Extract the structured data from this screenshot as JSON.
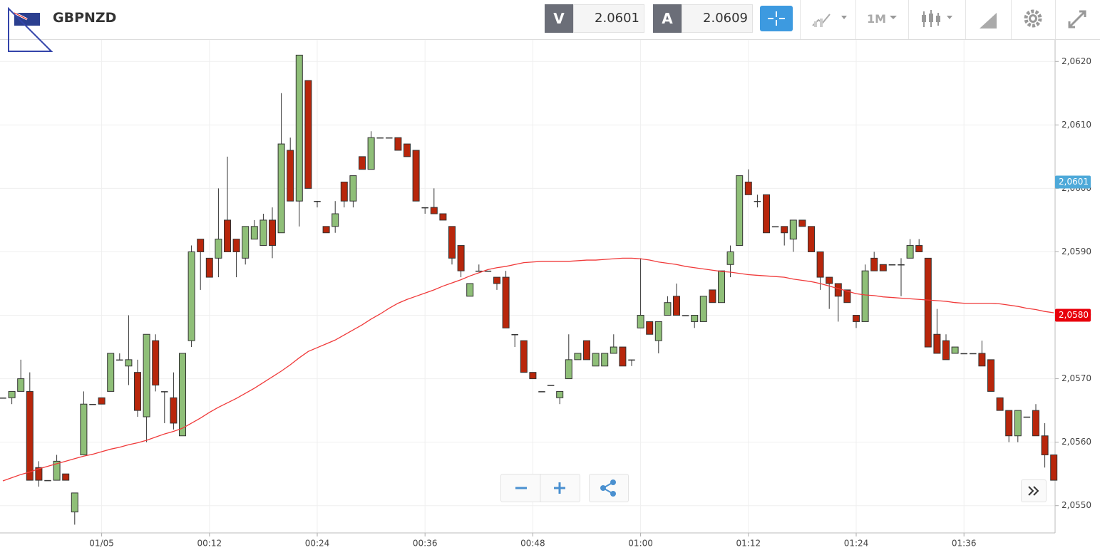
{
  "toolbar": {
    "symbol": "GBPNZD",
    "sell_label": "V",
    "sell_price": "2.0601",
    "buy_label": "A",
    "buy_price": "2.0609",
    "timeframe": "1M"
  },
  "chart_data": {
    "type": "candlestick",
    "categories": [
      null,
      null,
      null,
      null,
      null,
      null,
      null,
      null,
      null,
      null,
      null,
      "01/05",
      null,
      null,
      null,
      null,
      null,
      null,
      null,
      null,
      null,
      null,
      null,
      "00:12",
      null,
      null,
      null,
      null,
      null,
      null,
      null,
      null,
      null,
      null,
      null,
      "00:24",
      null,
      null,
      null,
      null,
      null,
      null,
      null,
      null,
      null,
      null,
      null,
      "00:36",
      null,
      null,
      null,
      null,
      null,
      null,
      null,
      null,
      null,
      null,
      null,
      "00:48",
      null,
      null,
      null,
      null,
      null,
      null,
      null,
      null,
      null,
      null,
      null,
      "01:00",
      null,
      null,
      null,
      null,
      null,
      null,
      null,
      null,
      null,
      null,
      null,
      "01:12",
      null,
      null,
      null,
      null,
      null,
      null,
      null,
      null,
      null,
      null,
      null,
      "01:24",
      null,
      null,
      null,
      null,
      null,
      null,
      null,
      null,
      null,
      null,
      null,
      "01:36",
      null,
      null,
      null,
      null,
      null,
      null,
      null,
      null,
      null,
      null
    ],
    "open": [
      2.0567,
      2.0567,
      2.0568,
      2.0568,
      2.0556,
      2.0554,
      2.0554,
      2.0555,
      2.0549,
      2.0558,
      2.0566,
      2.0567,
      2.0568,
      2.0573,
      2.0572,
      2.0571,
      2.0564,
      2.0576,
      2.0568,
      2.0567,
      2.0561,
      2.0576,
      2.0592,
      2.0589,
      2.0589,
      2.0595,
      2.0592,
      2.0589,
      2.0592,
      2.0591,
      2.0595,
      2.0593,
      2.0606,
      2.0598,
      2.0617,
      2.0598,
      2.0594,
      2.0594,
      2.0601,
      2.0598,
      2.0605,
      2.0603,
      2.0608,
      2.0608,
      2.0608,
      2.0607,
      2.0606,
      2.0597,
      2.0597,
      2.0596,
      2.0594,
      2.0591,
      2.0583,
      2.0587,
      2.0587,
      2.0586,
      2.0586,
      2.0577,
      2.0576,
      2.0571,
      2.0568,
      2.0569,
      2.0567,
      2.057,
      2.0573,
      2.0576,
      2.0572,
      2.0572,
      2.0574,
      2.0575,
      2.0573,
      2.0578,
      2.0579,
      2.0576,
      2.058,
      2.0583,
      2.058,
      2.0579,
      2.0579,
      2.0584,
      2.0582,
      2.0588,
      2.0591,
      2.0601,
      2.0598,
      2.0599,
      2.0594,
      2.0594,
      2.0592,
      2.0595,
      2.0594,
      2.059,
      2.0586,
      2.0585,
      2.0584,
      2.058,
      2.0579,
      2.0589,
      2.0588,
      2.0588,
      2.0588,
      2.0589,
      2.0591,
      2.0589,
      2.0577,
      2.0576,
      2.0574,
      2.0574,
      2.0574,
      2.0574,
      2.0573,
      2.0567,
      2.0565,
      2.0561,
      2.0564,
      2.0565,
      2.0561,
      2.0558
    ],
    "high": [
      2.0567,
      2.0568,
      2.0573,
      2.0571,
      2.0557,
      2.0554,
      2.0558,
      2.0555,
      2.0552,
      2.0568,
      2.0566,
      2.0567,
      2.0574,
      2.0574,
      2.058,
      2.0573,
      2.0577,
      2.0577,
      2.0568,
      2.0571,
      2.0574,
      2.0591,
      2.0592,
      2.0589,
      2.06,
      2.0605,
      2.0592,
      2.0594,
      2.0595,
      2.0596,
      2.0597,
      2.0615,
      2.0608,
      2.0621,
      2.0617,
      2.0598,
      2.0594,
      2.0598,
      2.0601,
      2.0602,
      2.0605,
      2.0609,
      2.0608,
      2.0608,
      2.0608,
      2.0607,
      2.0606,
      2.0597,
      2.06,
      2.0596,
      2.0594,
      2.0591,
      2.0585,
      2.0588,
      2.0587,
      2.0586,
      2.0587,
      2.0577,
      2.0576,
      2.0571,
      2.0568,
      2.0569,
      2.0568,
      2.0577,
      2.0574,
      2.0576,
      2.0574,
      2.0574,
      2.0577,
      2.0575,
      2.0573,
      2.0589,
      2.0579,
      2.0579,
      2.0583,
      2.0585,
      2.058,
      2.058,
      2.0583,
      2.0584,
      2.0587,
      2.0591,
      2.0602,
      2.0603,
      2.0599,
      2.0599,
      2.0594,
      2.0594,
      2.0595,
      2.0595,
      2.0594,
      2.059,
      2.0586,
      2.0585,
      2.0584,
      2.058,
      2.0588,
      2.059,
      2.0588,
      2.0588,
      2.0589,
      2.0592,
      2.0592,
      2.0589,
      2.0581,
      2.0577,
      2.0575,
      2.0574,
      2.0574,
      2.0576,
      2.0573,
      2.0567,
      2.0565,
      2.0565,
      2.0564,
      2.0566,
      2.0563,
      2.0558
    ],
    "low": [
      2.0567,
      2.0566,
      2.0568,
      2.0554,
      2.0553,
      2.0554,
      2.0554,
      2.0554,
      2.0547,
      2.0558,
      2.0566,
      2.0566,
      2.0568,
      2.0573,
      2.0569,
      2.0564,
      2.056,
      2.0568,
      2.0563,
      2.0562,
      2.0561,
      2.0575,
      2.0584,
      2.0586,
      2.0586,
      2.059,
      2.0586,
      2.0588,
      2.0592,
      2.0591,
      2.0589,
      2.0593,
      2.0598,
      2.0594,
      2.06,
      2.0597,
      2.0593,
      2.0593,
      2.0597,
      2.0597,
      2.0603,
      2.0603,
      2.0608,
      2.0608,
      2.0606,
      2.0605,
      2.0598,
      2.0596,
      2.0596,
      2.0595,
      2.0588,
      2.0586,
      2.0583,
      2.0587,
      2.0587,
      2.0584,
      2.0578,
      2.0575,
      2.0571,
      2.057,
      2.0568,
      2.0569,
      2.0566,
      2.057,
      2.0573,
      2.0573,
      2.0572,
      2.0572,
      2.0574,
      2.0572,
      2.0572,
      2.0578,
      2.0577,
      2.0574,
      2.058,
      2.058,
      2.058,
      2.0578,
      2.0579,
      2.0582,
      2.0582,
      2.0586,
      2.0591,
      2.0599,
      2.0597,
      2.0593,
      2.0594,
      2.0591,
      2.059,
      2.0594,
      2.059,
      2.0584,
      2.0581,
      2.0579,
      2.0582,
      2.0578,
      2.0579,
      2.0587,
      2.0587,
      2.0588,
      2.0583,
      2.0589,
      2.059,
      2.0575,
      2.0574,
      2.0573,
      2.0574,
      2.0574,
      2.0574,
      2.0572,
      2.0568,
      2.0565,
      2.056,
      2.056,
      2.0564,
      2.0561,
      2.0556,
      2.0554
    ],
    "close": [
      2.0567,
      2.0568,
      2.057,
      2.0554,
      2.0554,
      2.0554,
      2.0557,
      2.0554,
      2.0552,
      2.0566,
      2.0566,
      2.0566,
      2.0574,
      2.0573,
      2.0573,
      2.0565,
      2.0577,
      2.0569,
      2.0568,
      2.0563,
      2.0574,
      2.059,
      2.059,
      2.0586,
      2.0592,
      2.059,
      2.059,
      2.0594,
      2.0594,
      2.0595,
      2.0591,
      2.0607,
      2.0598,
      2.0621,
      2.06,
      2.0598,
      2.0593,
      2.0596,
      2.0598,
      2.0602,
      2.0603,
      2.0608,
      2.0608,
      2.0608,
      2.0606,
      2.0605,
      2.0598,
      2.0597,
      2.0596,
      2.0595,
      2.0589,
      2.0587,
      2.0585,
      2.0587,
      2.0587,
      2.0585,
      2.0578,
      2.0577,
      2.0571,
      2.057,
      2.0568,
      2.0569,
      2.0568,
      2.0573,
      2.0574,
      2.0573,
      2.0574,
      2.0574,
      2.0575,
      2.0572,
      2.0573,
      2.058,
      2.0577,
      2.0579,
      2.0582,
      2.058,
      2.058,
      2.058,
      2.0583,
      2.0582,
      2.0587,
      2.059,
      2.0602,
      2.0599,
      2.0598,
      2.0593,
      2.0594,
      2.0593,
      2.0595,
      2.0594,
      2.059,
      2.0586,
      2.0585,
      2.0583,
      2.0582,
      2.0579,
      2.0587,
      2.0587,
      2.0587,
      2.0588,
      2.0588,
      2.0591,
      2.059,
      2.0575,
      2.0574,
      2.0573,
      2.0575,
      2.0574,
      2.0574,
      2.0572,
      2.0568,
      2.0565,
      2.0561,
      2.0565,
      2.0564,
      2.0561,
      2.0558,
      2.0554
    ],
    "up_color": "#8fbf78",
    "down_color": "#b8260b",
    "series": [
      {
        "color": "#f03a3a",
        "values": [
          2.05539,
          2.05544,
          2.05549,
          2.05553,
          2.05558,
          2.05562,
          2.05566,
          2.0557,
          2.05574,
          2.05578,
          2.05581,
          2.05585,
          2.05589,
          2.05592,
          2.05596,
          2.05599,
          2.05603,
          2.05608,
          2.05613,
          2.05617,
          2.05622,
          2.0563,
          2.05638,
          2.05647,
          2.05655,
          2.05662,
          2.05669,
          2.05677,
          2.05685,
          2.05694,
          2.05703,
          2.05712,
          2.05722,
          2.05733,
          2.05743,
          2.05749,
          2.05755,
          2.05761,
          2.05769,
          2.05777,
          2.05785,
          2.05794,
          2.05802,
          2.05811,
          2.05819,
          2.05825,
          2.0583,
          2.05835,
          2.0584,
          2.05846,
          2.05851,
          2.05856,
          2.05862,
          2.05867,
          2.05872,
          2.05875,
          2.05877,
          2.0588,
          2.05883,
          2.05884,
          2.05885,
          2.05885,
          2.05885,
          2.05885,
          2.05886,
          2.05887,
          2.05887,
          2.05888,
          2.05889,
          2.0589,
          2.0589,
          2.05889,
          2.05887,
          2.05884,
          2.05882,
          2.0588,
          2.05877,
          2.05875,
          2.05873,
          2.05871,
          2.05869,
          2.05868,
          2.05866,
          2.05864,
          2.05863,
          2.05862,
          2.05861,
          2.0586,
          2.05857,
          2.05855,
          2.05853,
          2.0585,
          2.05846,
          2.05842,
          2.05838,
          2.05834,
          2.05832,
          2.05831,
          2.05829,
          2.05828,
          2.05827,
          2.05826,
          2.05825,
          2.05824,
          2.05823,
          2.05822,
          2.0582,
          2.05819,
          2.05819,
          2.05819,
          2.05819,
          2.05818,
          2.05816,
          2.05814,
          2.05811,
          2.05809,
          2.05806,
          2.05804
        ]
      }
    ],
    "price_tags": [
      {
        "value": 2.0601,
        "label": "2,0601",
        "color": "#4ea9d9"
      },
      {
        "value": 2.058,
        "label": "2,0580",
        "color": "#e8000b"
      }
    ],
    "ylim": [
      2.05457,
      2.06234
    ],
    "yticks": [
      {
        "value": 2.055,
        "label": "2,0550"
      },
      {
        "value": 2.056,
        "label": "2,0560"
      },
      {
        "value": 2.057,
        "label": "2,0570"
      },
      {
        "value": 2.058,
        "label": "2,0580"
      },
      {
        "value": 2.059,
        "label": "2,0590"
      },
      {
        "value": 2.06,
        "label": "2,0600"
      },
      {
        "value": 2.061,
        "label": "2,0610"
      },
      {
        "value": 2.062,
        "label": "2,0620"
      }
    ],
    "grid": true
  }
}
